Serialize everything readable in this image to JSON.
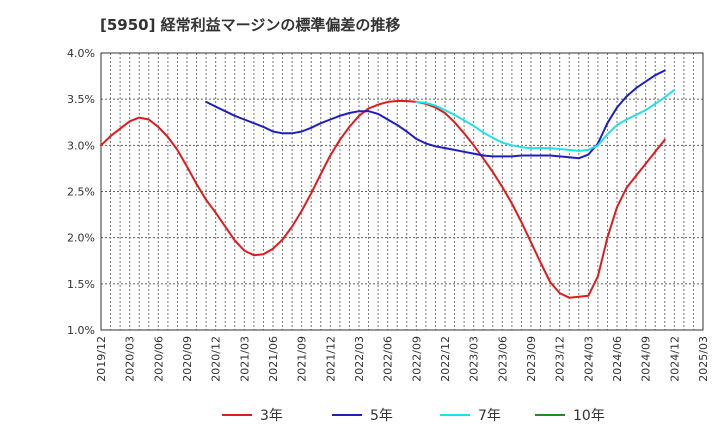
{
  "chart_data": {
    "type": "line",
    "title": "[5950]  経常利益マージンの標準偏差の推移",
    "y_unit": "%",
    "ylim": [
      1.0,
      4.0
    ],
    "y_ticks": [
      "4.0%",
      "3.5%",
      "3.0%",
      "2.5%",
      "2.0%",
      "1.5%",
      "1.0%"
    ],
    "x_ticks": [
      "2019/12",
      "2020/03",
      "2020/06",
      "2020/09",
      "2020/12",
      "2021/03",
      "2021/06",
      "2021/09",
      "2021/12",
      "2022/03",
      "2022/06",
      "2022/09",
      "2022/12",
      "2023/03",
      "2023/06",
      "2023/09",
      "2023/12",
      "2024/03",
      "2024/06",
      "2024/09",
      "2024/12",
      "2025/03"
    ],
    "grid": true,
    "legend_position": "bottom",
    "series": [
      {
        "name": "3年",
        "color": "#e31a1c",
        "points": [
          [
            "2019/12",
            3.0
          ],
          [
            "2020/01",
            3.1
          ],
          [
            "2020/02",
            3.18
          ],
          [
            "2020/03",
            3.26
          ],
          [
            "2020/04",
            3.3
          ],
          [
            "2020/05",
            3.28
          ],
          [
            "2020/06",
            3.2
          ],
          [
            "2020/07",
            3.09
          ],
          [
            "2020/08",
            2.95
          ],
          [
            "2020/09",
            2.77
          ],
          [
            "2020/10",
            2.58
          ],
          [
            "2020/11",
            2.41
          ],
          [
            "2020/12",
            2.27
          ],
          [
            "2021/01",
            2.12
          ],
          [
            "2021/02",
            1.97
          ],
          [
            "2021/03",
            1.86
          ],
          [
            "2021/04",
            1.81
          ],
          [
            "2021/05",
            1.82
          ],
          [
            "2021/06",
            1.88
          ],
          [
            "2021/07",
            1.98
          ],
          [
            "2021/08",
            2.12
          ],
          [
            "2021/09",
            2.29
          ],
          [
            "2021/10",
            2.48
          ],
          [
            "2021/11",
            2.69
          ],
          [
            "2021/12",
            2.89
          ],
          [
            "2022/01",
            3.06
          ],
          [
            "2022/02",
            3.2
          ],
          [
            "2022/03",
            3.32
          ],
          [
            "2022/04",
            3.4
          ],
          [
            "2022/05",
            3.44
          ],
          [
            "2022/06",
            3.47
          ],
          [
            "2022/07",
            3.48
          ],
          [
            "2022/08",
            3.48
          ],
          [
            "2022/09",
            3.47
          ],
          [
            "2022/10",
            3.45
          ],
          [
            "2022/11",
            3.41
          ],
          [
            "2022/12",
            3.35
          ],
          [
            "2023/01",
            3.25
          ],
          [
            "2023/02",
            3.13
          ],
          [
            "2023/03",
            3.0
          ],
          [
            "2023/04",
            2.86
          ],
          [
            "2023/05",
            2.71
          ],
          [
            "2023/06",
            2.55
          ],
          [
            "2023/07",
            2.37
          ],
          [
            "2023/08",
            2.17
          ],
          [
            "2023/09",
            1.95
          ],
          [
            "2023/10",
            1.73
          ],
          [
            "2023/11",
            1.52
          ],
          [
            "2023/12",
            1.4
          ],
          [
            "2024/01",
            1.35
          ],
          [
            "2024/02",
            1.36
          ],
          [
            "2024/03",
            1.37
          ],
          [
            "2024/04",
            1.58
          ],
          [
            "2024/05",
            2.0
          ],
          [
            "2024/06",
            2.33
          ],
          [
            "2024/07",
            2.54
          ],
          [
            "2024/08",
            2.67
          ],
          [
            "2024/09",
            2.8
          ],
          [
            "2024/10",
            2.93
          ],
          [
            "2024/11",
            3.06
          ]
        ]
      },
      {
        "name": "5年",
        "color": "#1f1fbf",
        "points": [
          [
            "2020/11",
            3.47
          ],
          [
            "2020/12",
            3.42
          ],
          [
            "2021/01",
            3.37
          ],
          [
            "2021/02",
            3.32
          ],
          [
            "2021/03",
            3.28
          ],
          [
            "2021/04",
            3.24
          ],
          [
            "2021/05",
            3.2
          ],
          [
            "2021/06",
            3.15
          ],
          [
            "2021/07",
            3.13
          ],
          [
            "2021/08",
            3.13
          ],
          [
            "2021/09",
            3.15
          ],
          [
            "2021/10",
            3.19
          ],
          [
            "2021/11",
            3.24
          ],
          [
            "2021/12",
            3.28
          ],
          [
            "2022/01",
            3.32
          ],
          [
            "2022/02",
            3.35
          ],
          [
            "2022/03",
            3.37
          ],
          [
            "2022/04",
            3.37
          ],
          [
            "2022/05",
            3.34
          ],
          [
            "2022/06",
            3.28
          ],
          [
            "2022/07",
            3.22
          ],
          [
            "2022/08",
            3.15
          ],
          [
            "2022/09",
            3.07
          ],
          [
            "2022/10",
            3.02
          ],
          [
            "2022/11",
            2.99
          ],
          [
            "2022/12",
            2.97
          ],
          [
            "2023/01",
            2.95
          ],
          [
            "2023/02",
            2.93
          ],
          [
            "2023/03",
            2.91
          ],
          [
            "2023/04",
            2.89
          ],
          [
            "2023/05",
            2.88
          ],
          [
            "2023/06",
            2.88
          ],
          [
            "2023/07",
            2.88
          ],
          [
            "2023/08",
            2.89
          ],
          [
            "2023/09",
            2.89
          ],
          [
            "2023/10",
            2.89
          ],
          [
            "2023/11",
            2.89
          ],
          [
            "2023/12",
            2.88
          ],
          [
            "2024/01",
            2.87
          ],
          [
            "2024/02",
            2.86
          ],
          [
            "2024/03",
            2.9
          ],
          [
            "2024/04",
            3.02
          ],
          [
            "2024/05",
            3.24
          ],
          [
            "2024/06",
            3.41
          ],
          [
            "2024/07",
            3.53
          ],
          [
            "2024/08",
            3.62
          ],
          [
            "2024/09",
            3.69
          ],
          [
            "2024/10",
            3.76
          ],
          [
            "2024/11",
            3.81
          ]
        ]
      },
      {
        "name": "7年",
        "color": "#22e0e8",
        "points": [
          [
            "2022/09",
            3.47
          ],
          [
            "2022/10",
            3.46
          ],
          [
            "2022/11",
            3.43
          ],
          [
            "2022/12",
            3.38
          ],
          [
            "2023/01",
            3.33
          ],
          [
            "2023/02",
            3.27
          ],
          [
            "2023/03",
            3.21
          ],
          [
            "2023/04",
            3.14
          ],
          [
            "2023/05",
            3.08
          ],
          [
            "2023/06",
            3.03
          ],
          [
            "2023/07",
            3.0
          ],
          [
            "2023/08",
            2.98
          ],
          [
            "2023/09",
            2.97
          ],
          [
            "2023/10",
            2.97
          ],
          [
            "2023/11",
            2.97
          ],
          [
            "2023/12",
            2.96
          ],
          [
            "2024/01",
            2.95
          ],
          [
            "2024/02",
            2.94
          ],
          [
            "2024/03",
            2.95
          ],
          [
            "2024/04",
            3.0
          ],
          [
            "2024/05",
            3.12
          ],
          [
            "2024/06",
            3.22
          ],
          [
            "2024/07",
            3.28
          ],
          [
            "2024/08",
            3.33
          ],
          [
            "2024/09",
            3.38
          ],
          [
            "2024/10",
            3.45
          ],
          [
            "2024/11",
            3.52
          ],
          [
            "2024/12",
            3.6
          ]
        ]
      },
      {
        "name": "10年",
        "color": "#1e8c1e",
        "points": []
      }
    ]
  }
}
